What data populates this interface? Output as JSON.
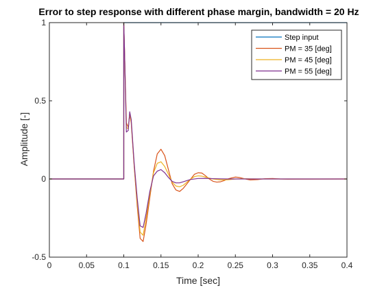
{
  "chart_data": {
    "type": "line",
    "title": "Error to step response with different phase margin, bandwidth = 20 Hz",
    "xlabel": "Time [sec]",
    "ylabel": "Amplitude [-]",
    "xlim": [
      0,
      0.4
    ],
    "ylim": [
      -0.5,
      1
    ],
    "xticks": [
      0,
      0.05,
      0.1,
      0.15,
      0.2,
      0.25,
      0.3,
      0.35,
      0.4
    ],
    "xtick_labels": [
      "0",
      "0.05",
      "0.1",
      "0.15",
      "0.2",
      "0.25",
      "0.3",
      "0.35",
      "0.4"
    ],
    "yticks": [
      -0.5,
      0,
      0.5,
      1
    ],
    "ytick_labels": [
      "-0.5",
      "0",
      "0.5",
      "1"
    ],
    "grid": false,
    "legend_position": "top-right",
    "series": [
      {
        "name": "Step input",
        "color": "#0072BD",
        "x": [
          0,
          0.1,
          0.1,
          0.4
        ],
        "y": [
          0,
          0,
          1,
          1
        ]
      },
      {
        "name": "PM = 35 [deg]",
        "color": "#D95319",
        "x": [
          0,
          0.1,
          0.1,
          0.101,
          0.1035,
          0.106,
          0.108,
          0.11,
          0.114,
          0.118,
          0.122,
          0.126,
          0.13,
          0.135,
          0.14,
          0.145,
          0.15,
          0.155,
          0.16,
          0.165,
          0.17,
          0.175,
          0.18,
          0.185,
          0.19,
          0.195,
          0.2,
          0.205,
          0.21,
          0.215,
          0.22,
          0.225,
          0.23,
          0.235,
          0.24,
          0.245,
          0.25,
          0.255,
          0.26,
          0.265,
          0.27,
          0.28,
          0.29,
          0.3,
          0.31,
          0.32,
          0.4
        ],
        "y": [
          0,
          0,
          1,
          0.82,
          0.36,
          0.33,
          0.41,
          0.36,
          0.08,
          -0.17,
          -0.38,
          -0.4,
          -0.29,
          -0.12,
          0.05,
          0.16,
          0.19,
          0.15,
          0.06,
          -0.03,
          -0.07,
          -0.08,
          -0.06,
          -0.03,
          0.0,
          0.03,
          0.04,
          0.038,
          0.02,
          0.0,
          -0.015,
          -0.02,
          -0.018,
          -0.01,
          0.0,
          0.007,
          0.012,
          0.01,
          0.004,
          -0.002,
          -0.006,
          -0.004,
          0.002,
          0.003,
          0.0,
          -0.001,
          0
        ]
      },
      {
        "name": "PM = 45 [deg]",
        "color": "#EDB120",
        "x": [
          0,
          0.1,
          0.1,
          0.101,
          0.1035,
          0.106,
          0.108,
          0.11,
          0.114,
          0.118,
          0.122,
          0.126,
          0.13,
          0.135,
          0.14,
          0.145,
          0.15,
          0.155,
          0.16,
          0.165,
          0.17,
          0.175,
          0.18,
          0.185,
          0.19,
          0.195,
          0.2,
          0.205,
          0.21,
          0.215,
          0.22,
          0.23,
          0.24,
          0.25,
          0.26,
          0.28,
          0.3,
          0.4
        ],
        "y": [
          0,
          0,
          1,
          0.82,
          0.33,
          0.32,
          0.42,
          0.37,
          0.09,
          -0.15,
          -0.34,
          -0.36,
          -0.25,
          -0.1,
          0.04,
          0.1,
          0.11,
          0.08,
          0.03,
          -0.02,
          -0.045,
          -0.05,
          -0.04,
          -0.02,
          0.0,
          0.015,
          0.02,
          0.018,
          0.012,
          0.005,
          0.0,
          -0.006,
          -0.005,
          0.0,
          0.002,
          0.0,
          0.0,
          0
        ]
      },
      {
        "name": "PM = 55 [deg]",
        "color": "#7E2F8E",
        "x": [
          0,
          0.1,
          0.1,
          0.101,
          0.1035,
          0.106,
          0.108,
          0.11,
          0.114,
          0.118,
          0.122,
          0.126,
          0.13,
          0.135,
          0.14,
          0.145,
          0.15,
          0.155,
          0.16,
          0.165,
          0.17,
          0.175,
          0.18,
          0.185,
          0.19,
          0.2,
          0.21,
          0.22,
          0.24,
          0.26,
          0.4
        ],
        "y": [
          0,
          0,
          1,
          0.82,
          0.3,
          0.31,
          0.43,
          0.38,
          0.1,
          -0.12,
          -0.3,
          -0.31,
          -0.22,
          -0.08,
          0.02,
          0.05,
          0.06,
          0.04,
          0.01,
          -0.015,
          -0.025,
          -0.025,
          -0.018,
          -0.01,
          -0.003,
          0.003,
          0.004,
          0.002,
          0.0,
          0.0,
          0
        ]
      }
    ]
  }
}
